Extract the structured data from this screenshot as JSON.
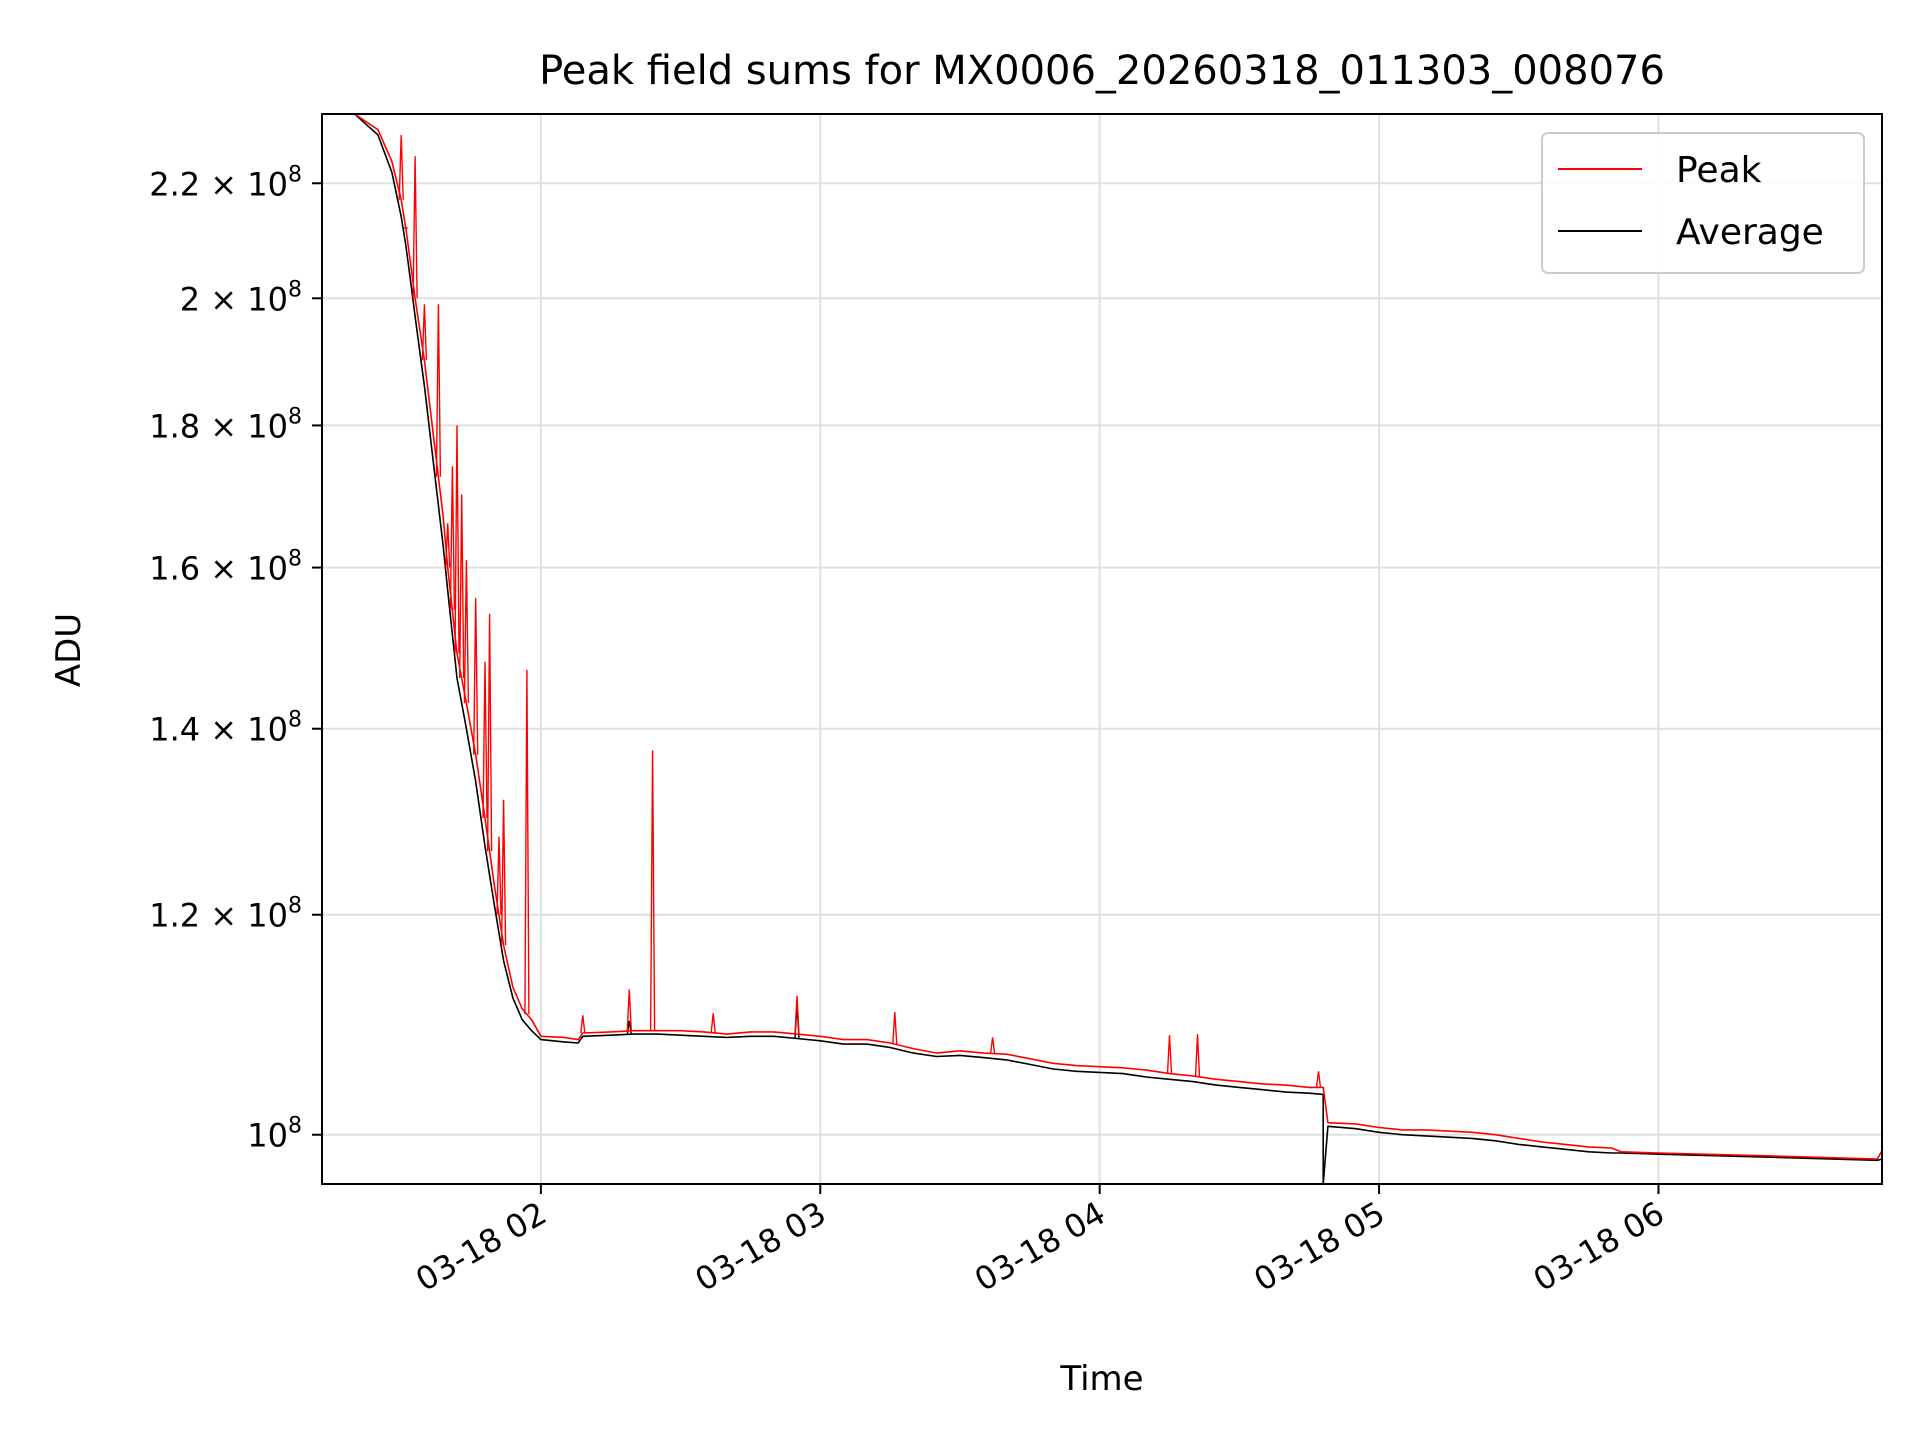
{
  "chart_data": {
    "type": "line",
    "title": "Peak field sums for MX0006_20260318_011303_008076",
    "xlabel": "Time",
    "ylabel": "ADU",
    "yscale": "log",
    "grid": true,
    "legend_position": "top-right",
    "xlim": [
      "2026-03-18 01:13",
      "2026-03-18 06:48"
    ],
    "ylim": [
      96000000,
      233000000
    ],
    "x_ticks": [
      {
        "value": "2026-03-18 02:00",
        "label": "03-18 02"
      },
      {
        "value": "2026-03-18 03:00",
        "label": "03-18 03"
      },
      {
        "value": "2026-03-18 04:00",
        "label": "03-18 04"
      },
      {
        "value": "2026-03-18 05:00",
        "label": "03-18 05"
      },
      {
        "value": "2026-03-18 06:00",
        "label": "03-18 06"
      }
    ],
    "y_ticks": [
      {
        "value": 100000000,
        "mantissa": "",
        "exponent": "8"
      },
      {
        "value": 120000000,
        "mantissa": "1.2",
        "exponent": "8"
      },
      {
        "value": 140000000,
        "mantissa": "1.4",
        "exponent": "8"
      },
      {
        "value": 160000000,
        "mantissa": "1.6",
        "exponent": "8"
      },
      {
        "value": 180000000,
        "mantissa": "1.8",
        "exponent": "8"
      },
      {
        "value": 200000000,
        "mantissa": "2",
        "exponent": "8"
      },
      {
        "value": 220000000,
        "mantissa": "2.2",
        "exponent": "8"
      }
    ],
    "series": [
      {
        "name": "Peak",
        "color": "#ff0000",
        "points": [
          [
            "2026-03-18 01:13",
            233000000
          ],
          [
            "2026-03-18 01:20",
            233000000
          ],
          [
            "2026-03-18 01:25",
            230000000
          ],
          [
            "2026-03-18 01:28",
            224000000
          ],
          [
            "2026-03-18 01:30",
            217000000
          ],
          [
            "2026-03-18 01:31",
            212000000
          ],
          [
            "2026-03-18 01:32",
            206000000
          ],
          [
            "2026-03-18 01:33",
            200000000
          ],
          [
            "2026-03-18 01:35",
            190000000
          ],
          [
            "2026-03-18 01:37",
            178000000
          ],
          [
            "2026-03-18 01:39",
            167000000
          ],
          [
            "2026-03-18 01:40",
            160000000
          ],
          [
            "2026-03-18 01:42",
            149000000
          ],
          [
            "2026-03-18 01:44",
            143000000
          ],
          [
            "2026-03-18 01:46",
            137000000
          ],
          [
            "2026-03-18 01:48",
            130000000
          ],
          [
            "2026-03-18 01:50",
            123000000
          ],
          [
            "2026-03-18 01:52",
            117000000
          ],
          [
            "2026-03-18 01:54",
            113000000
          ],
          [
            "2026-03-18 01:56",
            111000000
          ],
          [
            "2026-03-18 01:58",
            110000000
          ],
          [
            "2026-03-18 02:00",
            108500000
          ],
          [
            "2026-03-18 02:05",
            108400000
          ],
          [
            "2026-03-18 02:08",
            108200000
          ],
          [
            "2026-03-18 02:09",
            108800000
          ],
          [
            "2026-03-18 02:15",
            108900000
          ],
          [
            "2026-03-18 02:20",
            109000000
          ],
          [
            "2026-03-18 02:25",
            109000000
          ],
          [
            "2026-03-18 02:30",
            109000000
          ],
          [
            "2026-03-18 02:35",
            108900000
          ],
          [
            "2026-03-18 02:40",
            108700000
          ],
          [
            "2026-03-18 02:45",
            108900000
          ],
          [
            "2026-03-18 02:50",
            108900000
          ],
          [
            "2026-03-18 02:55",
            108700000
          ],
          [
            "2026-03-18 03:00",
            108500000
          ],
          [
            "2026-03-18 03:05",
            108200000
          ],
          [
            "2026-03-18 03:10",
            108200000
          ],
          [
            "2026-03-18 03:15",
            107900000
          ],
          [
            "2026-03-18 03:20",
            107400000
          ],
          [
            "2026-03-18 03:25",
            107000000
          ],
          [
            "2026-03-18 03:30",
            107200000
          ],
          [
            "2026-03-18 03:35",
            107000000
          ],
          [
            "2026-03-18 03:40",
            106900000
          ],
          [
            "2026-03-18 03:45",
            106500000
          ],
          [
            "2026-03-18 03:50",
            106100000
          ],
          [
            "2026-03-18 03:55",
            105900000
          ],
          [
            "2026-03-18 04:00",
            105800000
          ],
          [
            "2026-03-18 04:05",
            105700000
          ],
          [
            "2026-03-18 04:10",
            105500000
          ],
          [
            "2026-03-18 04:15",
            105200000
          ],
          [
            "2026-03-18 04:20",
            105000000
          ],
          [
            "2026-03-18 04:25",
            104700000
          ],
          [
            "2026-03-18 04:30",
            104500000
          ],
          [
            "2026-03-18 04:35",
            104300000
          ],
          [
            "2026-03-18 04:40",
            104200000
          ],
          [
            "2026-03-18 04:45",
            104000000
          ],
          [
            "2026-03-18 04:48",
            104000000
          ],
          [
            "2026-03-18 04:49",
            101000000
          ],
          [
            "2026-03-18 04:55",
            100900000
          ],
          [
            "2026-03-18 05:00",
            100600000
          ],
          [
            "2026-03-18 05:05",
            100400000
          ],
          [
            "2026-03-18 05:10",
            100400000
          ],
          [
            "2026-03-18 05:15",
            100300000
          ],
          [
            "2026-03-18 05:20",
            100200000
          ],
          [
            "2026-03-18 05:25",
            100000000
          ],
          [
            "2026-03-18 05:30",
            99700000
          ],
          [
            "2026-03-18 05:35",
            99400000
          ],
          [
            "2026-03-18 05:40",
            99200000
          ],
          [
            "2026-03-18 05:45",
            99000000
          ],
          [
            "2026-03-18 05:50",
            98900000
          ],
          [
            "2026-03-18 05:52",
            98600000
          ],
          [
            "2026-03-18 06:00",
            98500000
          ],
          [
            "2026-03-18 06:20",
            98300000
          ],
          [
            "2026-03-18 06:47",
            98000000
          ],
          [
            "2026-03-18 06:48",
            98700000
          ]
        ],
        "spikes": [
          [
            "2026-03-18 01:30",
            229000000
          ],
          [
            "2026-03-18 01:31",
            212000000
          ],
          [
            "2026-03-18 01:33",
            225000000
          ],
          [
            "2026-03-18 01:35",
            199000000
          ],
          [
            "2026-03-18 01:38",
            199000000
          ],
          [
            "2026-03-18 01:40",
            166000000
          ],
          [
            "2026-03-18 01:41",
            174000000
          ],
          [
            "2026-03-18 01:42",
            180000000
          ],
          [
            "2026-03-18 01:43",
            170000000
          ],
          [
            "2026-03-18 01:44",
            161000000
          ],
          [
            "2026-03-18 01:46",
            156000000
          ],
          [
            "2026-03-18 01:48",
            148000000
          ],
          [
            "2026-03-18 01:49",
            154000000
          ],
          [
            "2026-03-18 01:51",
            128000000
          ],
          [
            "2026-03-18 01:52",
            132000000
          ],
          [
            "2026-03-18 01:57",
            147000000
          ],
          [
            "2026-03-18 02:09",
            110400000
          ],
          [
            "2026-03-18 02:19",
            112800000
          ],
          [
            "2026-03-18 02:24",
            137500000
          ],
          [
            "2026-03-18 02:37",
            110600000
          ],
          [
            "2026-03-18 02:55",
            112200000
          ],
          [
            "2026-03-18 03:16",
            110700000
          ],
          [
            "2026-03-18 03:37",
            108400000
          ],
          [
            "2026-03-18 04:15",
            108600000
          ],
          [
            "2026-03-18 04:21",
            108700000
          ],
          [
            "2026-03-18 04:47",
            105400000
          ]
        ]
      },
      {
        "name": "Average",
        "color": "#000000",
        "points": [
          [
            "2026-03-18 01:13",
            233000000
          ],
          [
            "2026-03-18 01:20",
            233000000
          ],
          [
            "2026-03-18 01:25",
            229000000
          ],
          [
            "2026-03-18 01:28",
            222000000
          ],
          [
            "2026-03-18 01:30",
            214000000
          ],
          [
            "2026-03-18 01:31",
            209000000
          ],
          [
            "2026-03-18 01:32",
            203000000
          ],
          [
            "2026-03-18 01:33",
            197000000
          ],
          [
            "2026-03-18 01:35",
            186000000
          ],
          [
            "2026-03-18 01:37",
            174000000
          ],
          [
            "2026-03-18 01:39",
            163000000
          ],
          [
            "2026-03-18 01:40",
            157000000
          ],
          [
            "2026-03-18 01:42",
            146000000
          ],
          [
            "2026-03-18 01:44",
            140000000
          ],
          [
            "2026-03-18 01:46",
            134000000
          ],
          [
            "2026-03-18 01:48",
            127000000
          ],
          [
            "2026-03-18 01:50",
            121000000
          ],
          [
            "2026-03-18 01:52",
            115500000
          ],
          [
            "2026-03-18 01:54",
            112000000
          ],
          [
            "2026-03-18 01:56",
            110000000
          ],
          [
            "2026-03-18 01:58",
            109000000
          ],
          [
            "2026-03-18 02:00",
            108200000
          ],
          [
            "2026-03-18 02:05",
            108000000
          ],
          [
            "2026-03-18 02:08",
            107900000
          ],
          [
            "2026-03-18 02:09",
            108500000
          ],
          [
            "2026-03-18 02:15",
            108600000
          ],
          [
            "2026-03-18 02:20",
            108700000
          ],
          [
            "2026-03-18 02:25",
            108700000
          ],
          [
            "2026-03-18 02:30",
            108600000
          ],
          [
            "2026-03-18 02:35",
            108500000
          ],
          [
            "2026-03-18 02:40",
            108400000
          ],
          [
            "2026-03-18 02:45",
            108500000
          ],
          [
            "2026-03-18 02:50",
            108500000
          ],
          [
            "2026-03-18 02:55",
            108300000
          ],
          [
            "2026-03-18 03:00",
            108100000
          ],
          [
            "2026-03-18 03:05",
            107800000
          ],
          [
            "2026-03-18 03:10",
            107800000
          ],
          [
            "2026-03-18 03:15",
            107500000
          ],
          [
            "2026-03-18 03:20",
            107000000
          ],
          [
            "2026-03-18 03:25",
            106700000
          ],
          [
            "2026-03-18 03:30",
            106800000
          ],
          [
            "2026-03-18 03:35",
            106600000
          ],
          [
            "2026-03-18 03:40",
            106400000
          ],
          [
            "2026-03-18 03:45",
            106000000
          ],
          [
            "2026-03-18 03:50",
            105600000
          ],
          [
            "2026-03-18 03:55",
            105400000
          ],
          [
            "2026-03-18 04:00",
            105300000
          ],
          [
            "2026-03-18 04:05",
            105200000
          ],
          [
            "2026-03-18 04:10",
            104900000
          ],
          [
            "2026-03-18 04:15",
            104700000
          ],
          [
            "2026-03-18 04:20",
            104500000
          ],
          [
            "2026-03-18 04:25",
            104200000
          ],
          [
            "2026-03-18 04:30",
            104000000
          ],
          [
            "2026-03-18 04:35",
            103800000
          ],
          [
            "2026-03-18 04:40",
            103600000
          ],
          [
            "2026-03-18 04:45",
            103500000
          ],
          [
            "2026-03-18 04:48",
            103400000
          ],
          [
            "2026-03-18 04:48",
            96000000
          ],
          [
            "2026-03-18 04:49",
            100700000
          ],
          [
            "2026-03-18 04:55",
            100500000
          ],
          [
            "2026-03-18 05:00",
            100200000
          ],
          [
            "2026-03-18 05:05",
            100000000
          ],
          [
            "2026-03-18 05:10",
            99900000
          ],
          [
            "2026-03-18 05:15",
            99800000
          ],
          [
            "2026-03-18 05:20",
            99700000
          ],
          [
            "2026-03-18 05:25",
            99500000
          ],
          [
            "2026-03-18 05:30",
            99200000
          ],
          [
            "2026-03-18 05:35",
            99000000
          ],
          [
            "2026-03-18 05:40",
            98800000
          ],
          [
            "2026-03-18 05:45",
            98600000
          ],
          [
            "2026-03-18 05:50",
            98500000
          ],
          [
            "2026-03-18 05:52",
            98500000
          ],
          [
            "2026-03-18 06:00",
            98400000
          ],
          [
            "2026-03-18 06:20",
            98200000
          ],
          [
            "2026-03-18 06:47",
            97900000
          ],
          [
            "2026-03-18 06:48",
            98000000
          ]
        ],
        "spikes": [
          [
            "2026-03-18 02:19",
            109900000
          ],
          [
            "2026-03-18 02:55",
            111400000
          ]
        ]
      }
    ]
  }
}
